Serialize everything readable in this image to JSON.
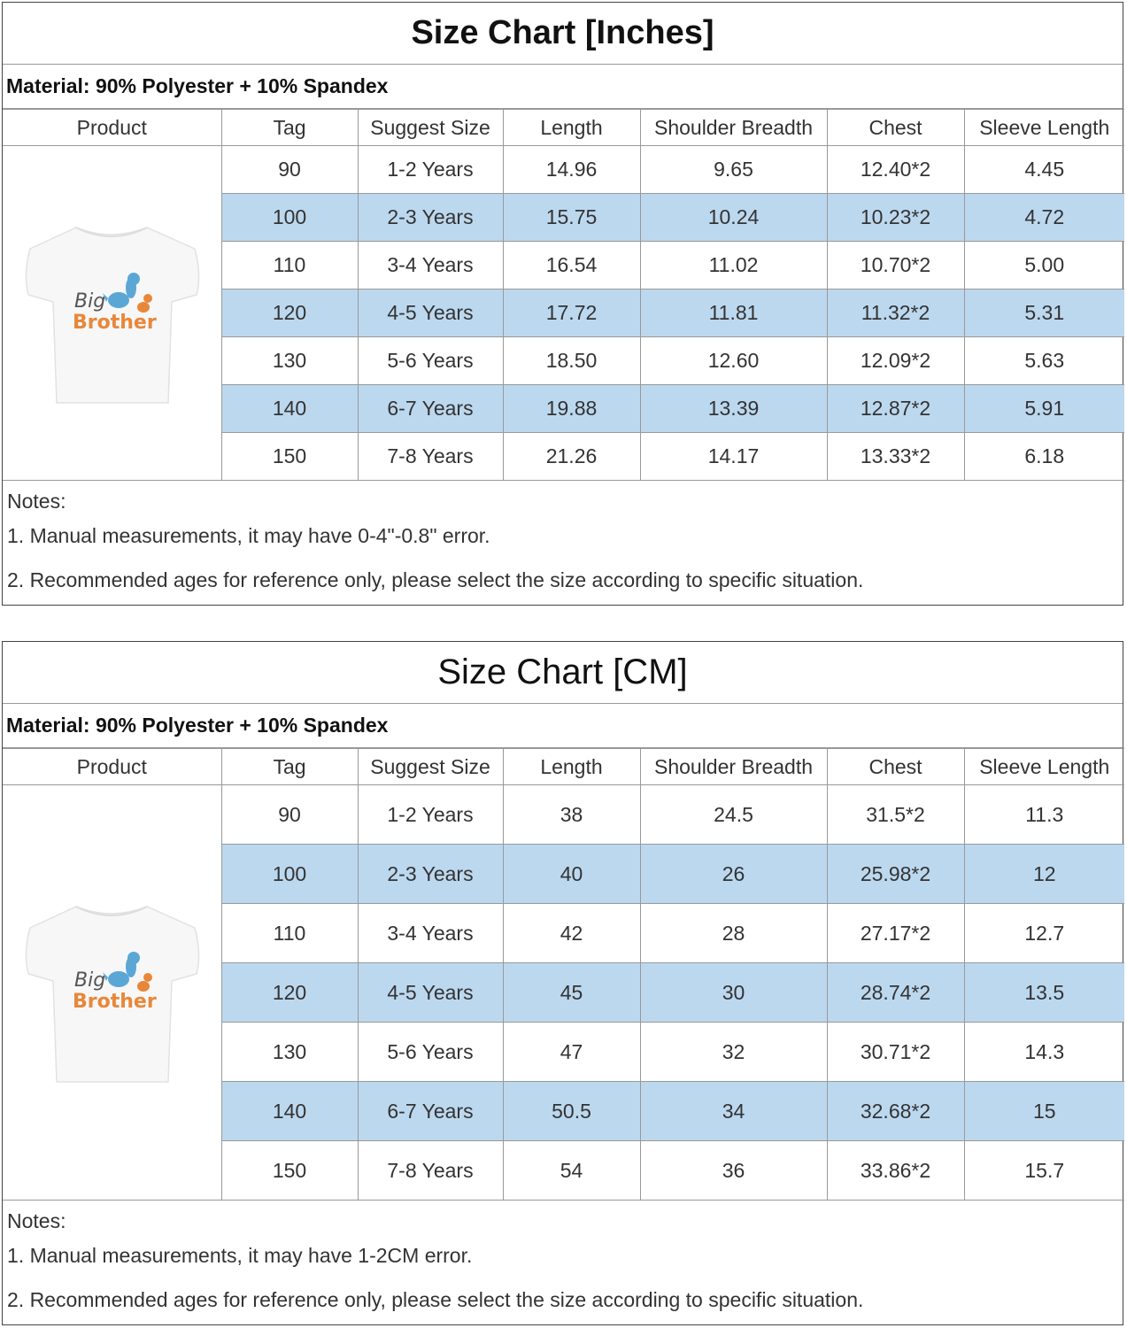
{
  "inches_chart": {
    "title": "Size Chart [Inches]",
    "material": "Material: 90% Polyester + 10% Spandex",
    "headers": [
      "Product",
      "Tag",
      "Suggest Size",
      "Length",
      "Shoulder Breadth",
      "Chest",
      "Sleeve Length"
    ],
    "rows": [
      {
        "tag": "90",
        "size": "1-2 Years",
        "length": "14.96",
        "shoulder": "9.65",
        "chest": "12.40*2",
        "sleeve": "4.45"
      },
      {
        "tag": "100",
        "size": "2-3 Years",
        "length": "15.75",
        "shoulder": "10.24",
        "chest": "10.23*2",
        "sleeve": "4.72"
      },
      {
        "tag": "110",
        "size": "3-4 Years",
        "length": "16.54",
        "shoulder": "11.02",
        "chest": "10.70*2",
        "sleeve": "5.00"
      },
      {
        "tag": "120",
        "size": "4-5 Years",
        "length": "17.72",
        "shoulder": "11.81",
        "chest": "11.32*2",
        "sleeve": "5.31"
      },
      {
        "tag": "130",
        "size": "5-6 Years",
        "length": "18.50",
        "shoulder": "12.60",
        "chest": "12.09*2",
        "sleeve": "5.63"
      },
      {
        "tag": "140",
        "size": "6-7 Years",
        "length": "19.88",
        "shoulder": "13.39",
        "chest": "12.87*2",
        "sleeve": "5.91"
      },
      {
        "tag": "150",
        "size": "7-8 Years",
        "length": "21.26",
        "shoulder": "14.17",
        "chest": "13.33*2",
        "sleeve": "6.18"
      }
    ],
    "notes": [
      "Notes:",
      "1. Manual measurements, it may have 0-4\"-0.8\" error.",
      "2. Recommended ages for reference only, please select the size according to specific situation."
    ]
  },
  "cm_chart": {
    "title": "Size Chart [CM]",
    "material": "Material: 90% Polyester + 10% Spandex",
    "headers": [
      "Product",
      "Tag",
      "Suggest Size",
      "Length",
      "Shoulder Breadth",
      "Chest",
      "Sleeve Length"
    ],
    "rows": [
      {
        "tag": "90",
        "size": "1-2 Years",
        "length": "38",
        "shoulder": "24.5",
        "chest": "31.5*2",
        "sleeve": "11.3"
      },
      {
        "tag": "100",
        "size": "2-3 Years",
        "length": "40",
        "shoulder": "26",
        "chest": "25.98*2",
        "sleeve": "12"
      },
      {
        "tag": "110",
        "size": "3-4 Years",
        "length": "42",
        "shoulder": "28",
        "chest": "27.17*2",
        "sleeve": "12.7"
      },
      {
        "tag": "120",
        "size": "4-5 Years",
        "length": "45",
        "shoulder": "30",
        "chest": "28.74*2",
        "sleeve": "13.5"
      },
      {
        "tag": "130",
        "size": "5-6 Years",
        "length": "47",
        "shoulder": "32",
        "chest": "30.71*2",
        "sleeve": "14.3"
      },
      {
        "tag": "140",
        "size": "6-7 Years",
        "length": "50.5",
        "shoulder": "34",
        "chest": "32.68*2",
        "sleeve": "15"
      },
      {
        "tag": "150",
        "size": "7-8 Years",
        "length": "54",
        "shoulder": "36",
        "chest": "33.86*2",
        "sleeve": "15.7"
      }
    ],
    "notes": [
      "Notes:",
      "1. Manual measurements, it may have 1-2CM error.",
      "2. Recommended ages for reference only, please select the size according to specific situation."
    ]
  },
  "shirt_print": {
    "line1": "Big",
    "line2": "Brother"
  },
  "colors": {
    "row_shade": "#bcd8ef",
    "print_orange": "#e8873a",
    "dino_blue": "#5aa7d6",
    "border": "#999999"
  }
}
